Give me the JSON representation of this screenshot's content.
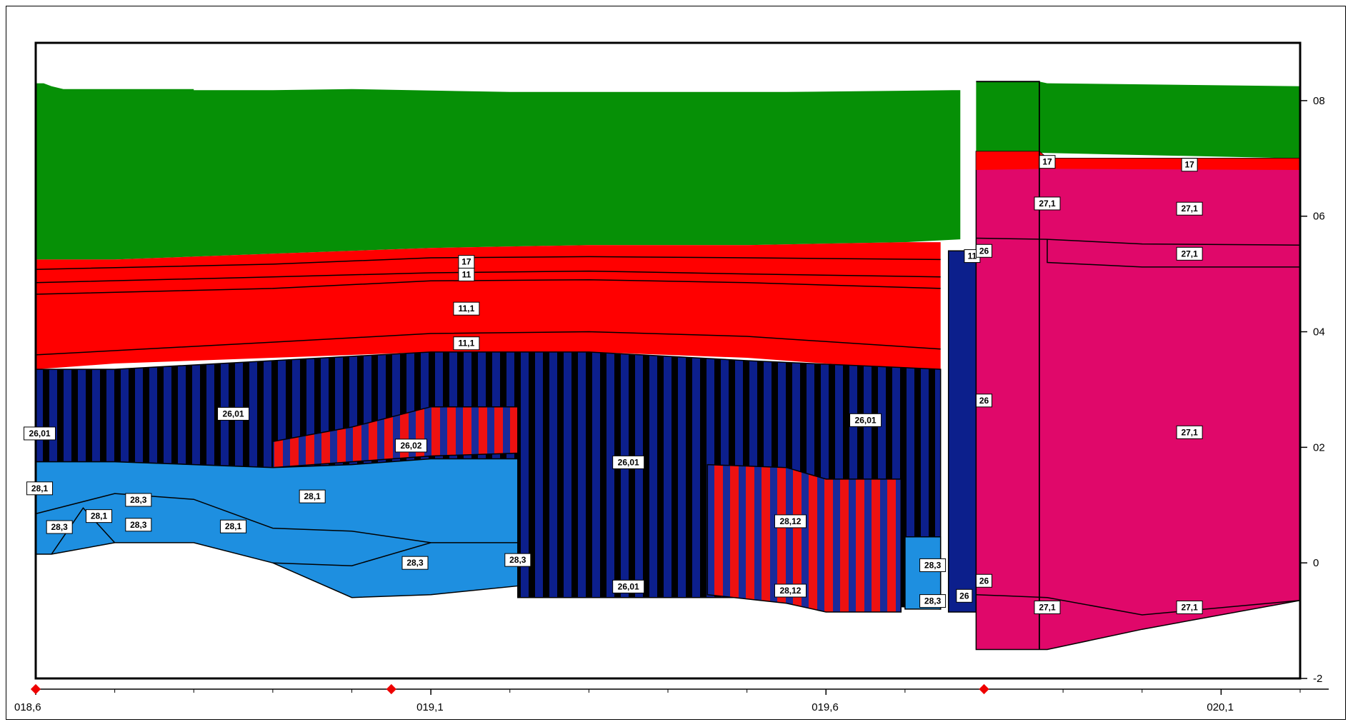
{
  "colors": {
    "green": "#069006",
    "red": "#ff0000",
    "blue": "#1e8fe0",
    "navy": "#0c1f8c",
    "pink": "#e0086a",
    "black": "#000000",
    "marker": "#ee0000"
  },
  "chart_data": {
    "type": "area",
    "title": "",
    "xlabel": "",
    "ylabel": "",
    "x_ticks": [
      "018,6",
      "019,1",
      "019,6",
      "020,1"
    ],
    "x_tick_values": [
      18.6,
      19.1,
      19.6,
      20.1
    ],
    "y_ticks": [
      "08",
      "06",
      "04",
      "02",
      "0",
      "-2"
    ],
    "y_tick_values": [
      8,
      6,
      4,
      2,
      0,
      -2
    ],
    "xlim": [
      18.6,
      20.2
    ],
    "ylim": [
      -2,
      9
    ],
    "markers_x": [
      18.6,
      19.05,
      19.8
    ],
    "series": [
      {
        "name": "17",
        "color_key": "red"
      },
      {
        "name": "11",
        "color_key": "red"
      },
      {
        "name": "11,1",
        "color_key": "red"
      },
      {
        "name": "26,01",
        "color_key": "navy"
      },
      {
        "name": "26,02",
        "color_key": "navy"
      },
      {
        "name": "28,1",
        "color_key": "blue"
      },
      {
        "name": "28,3",
        "color_key": "blue"
      },
      {
        "name": "28,12",
        "color_key": "red"
      },
      {
        "name": "26",
        "color_key": "navy"
      },
      {
        "name": "27,1",
        "color_key": "pink"
      }
    ],
    "labels": [
      {
        "text": "17",
        "x": 19.145,
        "y": 5.21
      },
      {
        "text": "11",
        "x": 19.145,
        "y": 4.99
      },
      {
        "text": "11,1",
        "x": 19.145,
        "y": 4.4
      },
      {
        "text": "11,1",
        "x": 19.145,
        "y": 3.8
      },
      {
        "text": "26,01",
        "x": 18.605,
        "y": 2.24
      },
      {
        "text": "26,01",
        "x": 18.85,
        "y": 2.58
      },
      {
        "text": "26,02",
        "x": 19.075,
        "y": 2.03
      },
      {
        "text": "26,01",
        "x": 19.35,
        "y": 1.74
      },
      {
        "text": "26,01",
        "x": 19.65,
        "y": 2.47
      },
      {
        "text": "28,1",
        "x": 18.605,
        "y": 1.29
      },
      {
        "text": "28,3",
        "x": 18.63,
        "y": 0.62
      },
      {
        "text": "28,1",
        "x": 18.68,
        "y": 0.81
      },
      {
        "text": "28,3",
        "x": 18.73,
        "y": 1.09
      },
      {
        "text": "28,3",
        "x": 18.73,
        "y": 0.66
      },
      {
        "text": "28,1",
        "x": 18.85,
        "y": 0.63
      },
      {
        "text": "28,1",
        "x": 18.95,
        "y": 1.15
      },
      {
        "text": "28,3",
        "x": 19.08,
        "y": 0.0
      },
      {
        "text": "28,3",
        "x": 19.21,
        "y": 0.05
      },
      {
        "text": "26,01",
        "x": 19.35,
        "y": -0.41
      },
      {
        "text": "28,12",
        "x": 19.555,
        "y": 0.72
      },
      {
        "text": "28,12",
        "x": 19.555,
        "y": -0.48
      },
      {
        "text": "28,3",
        "x": 19.735,
        "y": -0.04
      },
      {
        "text": "28,3",
        "x": 19.735,
        "y": -0.66
      },
      {
        "text": "26",
        "x": 19.775,
        "y": -0.57
      },
      {
        "text": "11",
        "x": 19.785,
        "y": 5.31
      },
      {
        "text": "26",
        "x": 19.8,
        "y": 5.4
      },
      {
        "text": "26",
        "x": 19.8,
        "y": 2.81
      },
      {
        "text": "26",
        "x": 19.8,
        "y": -0.31
      },
      {
        "text": "17",
        "x": 19.88,
        "y": 6.94
      },
      {
        "text": "17",
        "x": 20.06,
        "y": 6.89
      },
      {
        "text": "27,1",
        "x": 19.88,
        "y": 6.22
      },
      {
        "text": "27,1",
        "x": 20.06,
        "y": 6.13
      },
      {
        "text": "27,1",
        "x": 20.06,
        "y": 5.35
      },
      {
        "text": "27,1",
        "x": 20.06,
        "y": 2.26
      },
      {
        "text": "27,1",
        "x": 19.88,
        "y": -0.77
      },
      {
        "text": "27,1",
        "x": 20.06,
        "y": -0.77
      }
    ]
  }
}
